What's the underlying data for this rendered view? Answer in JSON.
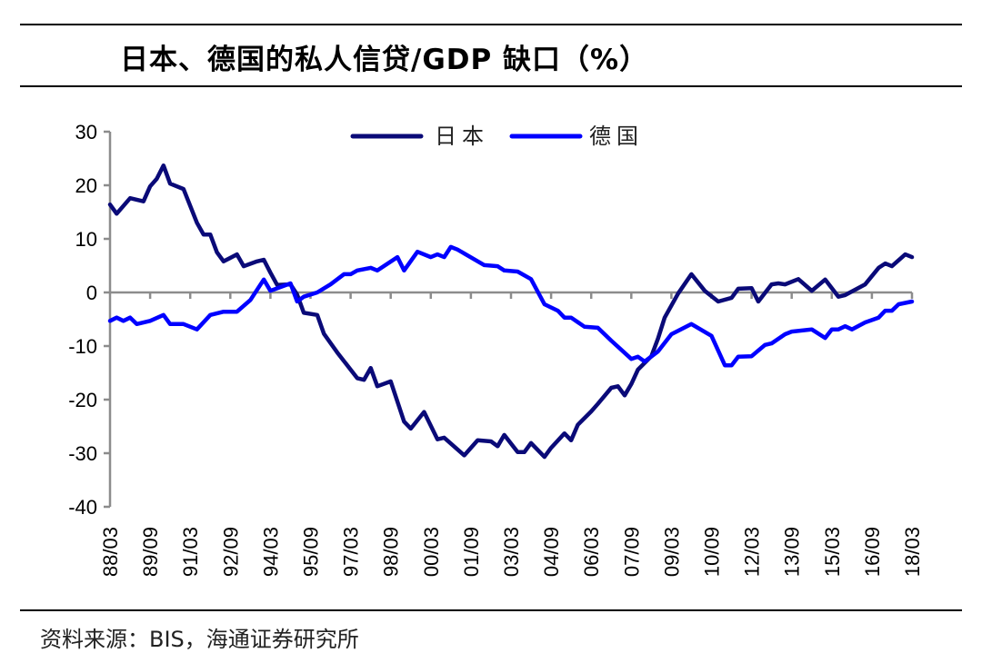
{
  "title": "日本、德国的私人信贷/GDP 缺口（%）",
  "source": "资料来源：BIS，海通证券研究所",
  "chart_data": {
    "type": "line",
    "title": "日本、德国的私人信贷/GDP 缺口（%）",
    "xlabel": "",
    "ylabel": "",
    "ylim": [
      -40,
      30
    ],
    "yticks": [
      30,
      20,
      10,
      0,
      -10,
      -20,
      -30,
      -40
    ],
    "xlim": [
      "1988/03",
      "2018/03"
    ],
    "xtick_labels": [
      "88/03",
      "89/09",
      "91/03",
      "92/09",
      "94/03",
      "95/09",
      "97/03",
      "98/09",
      "00/03",
      "01/09",
      "03/03",
      "04/09",
      "06/03",
      "07/09",
      "09/03",
      "10/09",
      "12/03",
      "13/09",
      "15/03",
      "16/09",
      "18/03"
    ],
    "grid": false,
    "legend_position": "top",
    "series": [
      {
        "name": "日本",
        "color": "#0a0a78",
        "points": [
          [
            "1988/03",
            16.4
          ],
          [
            "1988/06",
            14.7
          ],
          [
            "1988/12",
            17.6
          ],
          [
            "1989/06",
            17.0
          ],
          [
            "1989/09",
            19.8
          ],
          [
            "1989/12",
            21.2
          ],
          [
            "1990/03",
            23.7
          ],
          [
            "1990/06",
            20.3
          ],
          [
            "1990/12",
            19.3
          ],
          [
            "1991/06",
            13.0
          ],
          [
            "1991/09",
            10.8
          ],
          [
            "1991/12",
            10.8
          ],
          [
            "1992/03",
            7.5
          ],
          [
            "1992/06",
            5.8
          ],
          [
            "1992/12",
            7.1
          ],
          [
            "1993/03",
            4.9
          ],
          [
            "1993/09",
            5.8
          ],
          [
            "1993/12",
            6.1
          ],
          [
            "1994/03",
            3.7
          ],
          [
            "1994/06",
            1.4
          ],
          [
            "1994/12",
            1.5
          ],
          [
            "1995/03",
            -0.4
          ],
          [
            "1995/06",
            -3.8
          ],
          [
            "1995/12",
            -4.2
          ],
          [
            "1996/03",
            -7.7
          ],
          [
            "1996/09",
            -11.2
          ],
          [
            "1997/06",
            -16.0
          ],
          [
            "1997/09",
            -16.3
          ],
          [
            "1997/12",
            -14.1
          ],
          [
            "1998/03",
            -17.5
          ],
          [
            "1998/09",
            -16.6
          ],
          [
            "1999/03",
            -24.1
          ],
          [
            "1999/06",
            -25.4
          ],
          [
            "1999/12",
            -22.3
          ],
          [
            "2000/06",
            -27.4
          ],
          [
            "2000/09",
            -27.1
          ],
          [
            "2001/06",
            -30.4
          ],
          [
            "2001/12",
            -27.6
          ],
          [
            "2002/06",
            -27.8
          ],
          [
            "2002/09",
            -28.7
          ],
          [
            "2002/12",
            -26.6
          ],
          [
            "2003/06",
            -29.8
          ],
          [
            "2003/09",
            -29.8
          ],
          [
            "2003/12",
            -28.1
          ],
          [
            "2004/06",
            -30.7
          ],
          [
            "2004/09",
            -29.0
          ],
          [
            "2005/03",
            -26.3
          ],
          [
            "2005/06",
            -27.6
          ],
          [
            "2005/09",
            -24.7
          ],
          [
            "2006/03",
            -22.2
          ],
          [
            "2006/06",
            -20.8
          ],
          [
            "2006/12",
            -17.8
          ],
          [
            "2007/03",
            -17.5
          ],
          [
            "2007/06",
            -19.2
          ],
          [
            "2007/09",
            -17.1
          ],
          [
            "2007/12",
            -14.4
          ],
          [
            "2008/06",
            -11.9
          ],
          [
            "2008/09",
            -8.6
          ],
          [
            "2008/12",
            -4.7
          ],
          [
            "2009/06",
            -0.2
          ],
          [
            "2009/12",
            3.4
          ],
          [
            "2010/06",
            0.3
          ],
          [
            "2010/12",
            -1.7
          ],
          [
            "2011/06",
            -1.0
          ],
          [
            "2011/09",
            0.7
          ],
          [
            "2012/03",
            0.8
          ],
          [
            "2012/06",
            -1.7
          ],
          [
            "2012/12",
            1.5
          ],
          [
            "2013/03",
            1.7
          ],
          [
            "2013/06",
            1.5
          ],
          [
            "2013/12",
            2.5
          ],
          [
            "2014/06",
            0.3
          ],
          [
            "2014/12",
            2.4
          ],
          [
            "2015/06",
            -0.8
          ],
          [
            "2015/09",
            -0.5
          ],
          [
            "2016/06",
            1.5
          ],
          [
            "2016/12",
            4.6
          ],
          [
            "2017/03",
            5.4
          ],
          [
            "2017/06",
            4.9
          ],
          [
            "2017/12",
            7.1
          ],
          [
            "2018/03",
            6.6
          ]
        ]
      },
      {
        "name": "德国",
        "color": "#0000ff",
        "points": [
          [
            "1988/03",
            -5.3
          ],
          [
            "1988/06",
            -4.7
          ],
          [
            "1988/09",
            -5.3
          ],
          [
            "1988/12",
            -4.7
          ],
          [
            "1989/03",
            -5.9
          ],
          [
            "1989/09",
            -5.3
          ],
          [
            "1990/03",
            -4.2
          ],
          [
            "1990/06",
            -5.9
          ],
          [
            "1990/12",
            -5.9
          ],
          [
            "1991/06",
            -6.9
          ],
          [
            "1991/12",
            -4.2
          ],
          [
            "1992/06",
            -3.6
          ],
          [
            "1992/12",
            -3.6
          ],
          [
            "1993/06",
            -1.4
          ],
          [
            "1993/12",
            2.4
          ],
          [
            "1994/03",
            0.3
          ],
          [
            "1994/12",
            1.7
          ],
          [
            "1995/03",
            -1.7
          ],
          [
            "1995/06",
            -0.8
          ],
          [
            "1995/12",
            0.0
          ],
          [
            "1996/06",
            1.5
          ],
          [
            "1996/12",
            3.4
          ],
          [
            "1997/03",
            3.4
          ],
          [
            "1997/06",
            4.1
          ],
          [
            "1997/12",
            4.6
          ],
          [
            "1998/03",
            4.1
          ],
          [
            "1998/12",
            6.6
          ],
          [
            "1999/03",
            4.1
          ],
          [
            "1999/09",
            7.6
          ],
          [
            "2000/03",
            6.6
          ],
          [
            "2000/06",
            7.1
          ],
          [
            "2000/09",
            6.6
          ],
          [
            "2000/12",
            8.5
          ],
          [
            "2001/03",
            8.0
          ],
          [
            "2002/03",
            5.1
          ],
          [
            "2002/09",
            4.9
          ],
          [
            "2002/12",
            4.1
          ],
          [
            "2003/06",
            3.9
          ],
          [
            "2003/12",
            2.5
          ],
          [
            "2004/06",
            -2.2
          ],
          [
            "2004/12",
            -3.4
          ],
          [
            "2005/03",
            -4.7
          ],
          [
            "2005/06",
            -4.7
          ],
          [
            "2005/12",
            -6.4
          ],
          [
            "2006/06",
            -6.6
          ],
          [
            "2006/12",
            -9.0
          ],
          [
            "2007/09",
            -12.4
          ],
          [
            "2007/12",
            -12.0
          ],
          [
            "2008/03",
            -12.9
          ],
          [
            "2008/09",
            -11.0
          ],
          [
            "2009/03",
            -7.8
          ],
          [
            "2009/12",
            -5.9
          ],
          [
            "2010/09",
            -8.1
          ],
          [
            "2011/03",
            -13.6
          ],
          [
            "2011/06",
            -13.6
          ],
          [
            "2011/09",
            -12.0
          ],
          [
            "2012/03",
            -11.9
          ],
          [
            "2012/09",
            -9.8
          ],
          [
            "2012/12",
            -9.5
          ],
          [
            "2013/06",
            -7.8
          ],
          [
            "2013/09",
            -7.3
          ],
          [
            "2014/06",
            -6.9
          ],
          [
            "2014/12",
            -8.5
          ],
          [
            "2015/03",
            -6.9
          ],
          [
            "2015/06",
            -6.9
          ],
          [
            "2015/09",
            -6.3
          ],
          [
            "2015/12",
            -6.9
          ],
          [
            "2016/06",
            -5.6
          ],
          [
            "2016/12",
            -4.7
          ],
          [
            "2017/03",
            -3.4
          ],
          [
            "2017/06",
            -3.4
          ],
          [
            "2017/09",
            -2.2
          ],
          [
            "2018/03",
            -1.7
          ]
        ]
      }
    ]
  }
}
